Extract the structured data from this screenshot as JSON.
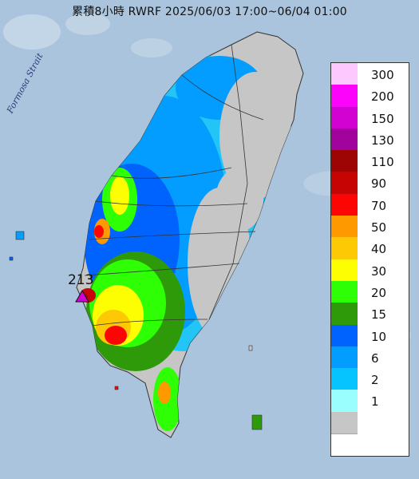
{
  "title": "累積8小時 RWRF 2025/06/03 17:00~06/04 01:00",
  "strait_label": "Formosa Strait",
  "max_label": "213",
  "legend": [
    {
      "label": "300",
      "color": "#fdc8fd"
    },
    {
      "label": "200",
      "color": "#fc03fc"
    },
    {
      "label": "150",
      "color": "#d203d2"
    },
    {
      "label": "130",
      "color": "#a1049c"
    },
    {
      "label": "110",
      "color": "#9d0404"
    },
    {
      "label": "90",
      "color": "#c60404"
    },
    {
      "label": "70",
      "color": "#fe0505"
    },
    {
      "label": "50",
      "color": "#fe9900"
    },
    {
      "label": "40",
      "color": "#fdc905"
    },
    {
      "label": "30",
      "color": "#fefe03"
    },
    {
      "label": "20",
      "color": "#2eff05"
    },
    {
      "label": "15",
      "color": "#2e9a0a"
    },
    {
      "label": "10",
      "color": "#0163fe"
    },
    {
      "label": "6",
      "color": "#029dfe"
    },
    {
      "label": "2",
      "color": "#05c4fe"
    },
    {
      "label": "1",
      "color": "#9bfefe"
    },
    {
      "label": "",
      "color": "#c6c6c6"
    }
  ],
  "colors": {
    "sea": "#a9c4dc",
    "land_dry": "#c6c6c6",
    "marker": "#d203d2"
  }
}
